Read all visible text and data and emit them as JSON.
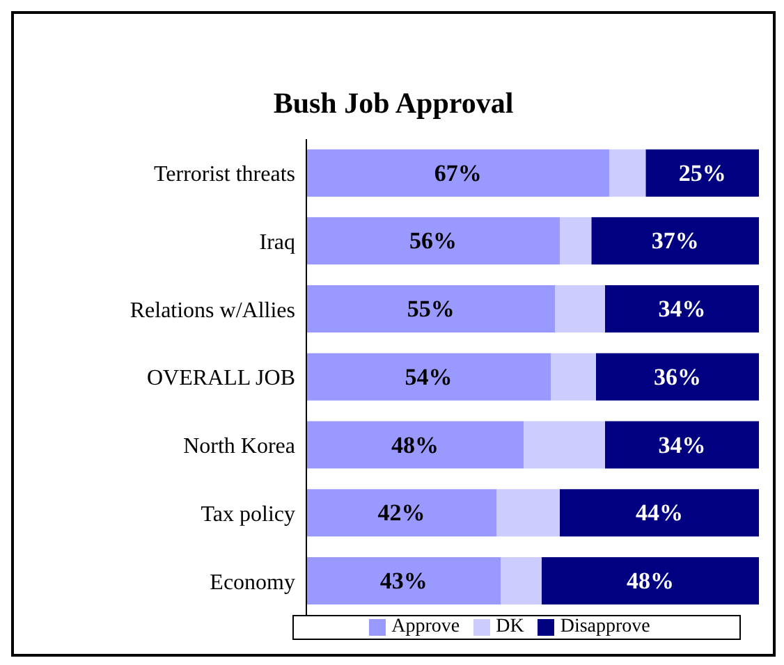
{
  "chart_data": {
    "type": "bar",
    "orientation": "horizontal",
    "stacked": true,
    "title": "Bush Job Approval",
    "categories": [
      "Terrorist threats",
      "Iraq",
      "Relations w/Allies",
      "OVERALL JOB",
      "North Korea",
      "Tax policy",
      "Economy"
    ],
    "xlim": [
      0,
      100
    ],
    "tick_labels": "y",
    "legend": "bottom",
    "series": [
      {
        "name": "Approve",
        "color": "#9999ff",
        "values": [
          67,
          56,
          55,
          54,
          48,
          42,
          43
        ],
        "value_labels": [
          "67%",
          "56%",
          "55%",
          "54%",
          "48%",
          "42%",
          "43%"
        ]
      },
      {
        "name": "DK",
        "color": "#ccccff",
        "values": [
          8,
          7,
          11,
          10,
          18,
          14,
          9
        ]
      },
      {
        "name": "Disapprove",
        "color": "#000080",
        "values": [
          25,
          37,
          34,
          36,
          34,
          44,
          48
        ],
        "value_labels": [
          "25%",
          "37%",
          "34%",
          "36%",
          "34%",
          "44%",
          "48%"
        ]
      }
    ]
  }
}
